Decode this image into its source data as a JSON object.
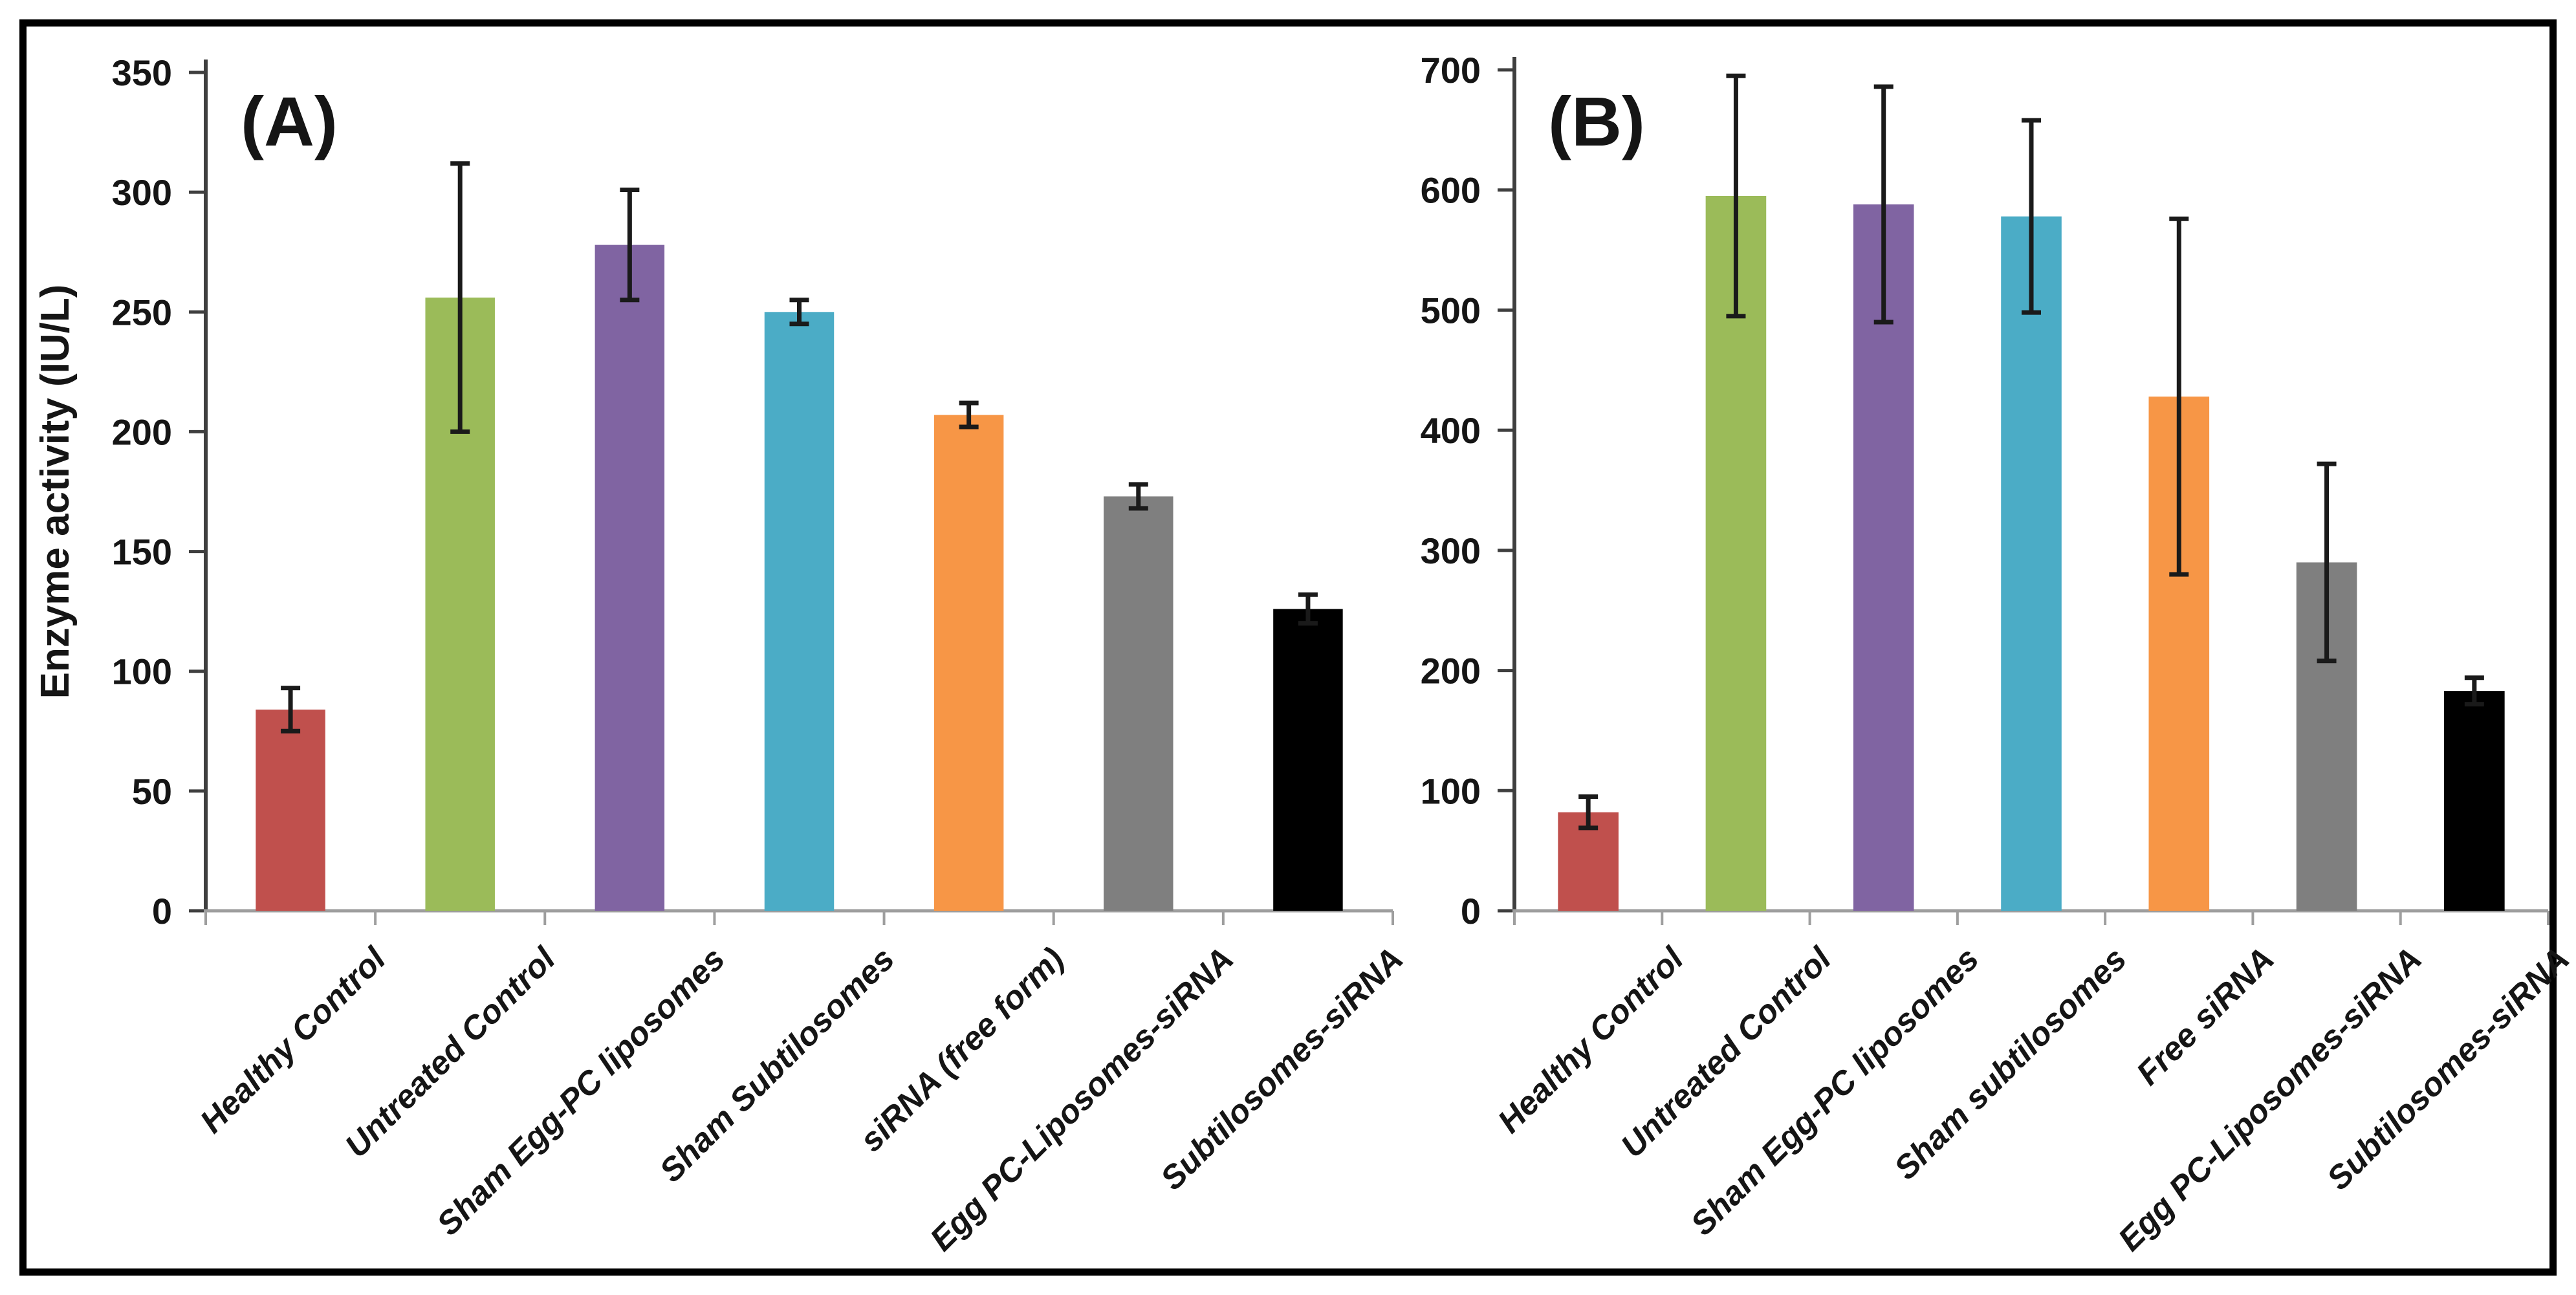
{
  "figure": {
    "frame_color": "#000000",
    "background": "#ffffff",
    "panels": [
      "(A)",
      "(B)"
    ]
  },
  "styles": {
    "axis_color": "#3f3f3f",
    "baseline_color": "#9e9e9e",
    "error_bar_color": "#1a1a1a",
    "text_color": "#151515"
  },
  "chart_data": [
    {
      "type": "bar",
      "panel_label": "(A)",
      "title": "(A)",
      "xlabel": "",
      "ylabel": "Enzyme activity (IU/L)",
      "ylim": [
        0,
        350
      ],
      "ytick_step": 50,
      "ytick_labels": [
        "0",
        "50",
        "100",
        "150",
        "200",
        "250",
        "300",
        "350"
      ],
      "grid": false,
      "legend_position": "none",
      "categories": [
        "Healthy Control",
        "Untreated Control",
        "Sham Egg-PC liposomes",
        "Sham Subtilosomes",
        "siRNA (free form)",
        "Egg PC-Liposomes-siRNA",
        "Subtilosomes-siRNA"
      ],
      "values": [
        84,
        256,
        278,
        250,
        207,
        173,
        126
      ],
      "errors": [
        9,
        56,
        23,
        5,
        5,
        5,
        6
      ],
      "bar_colors": [
        "#C0504D",
        "#9BBB59",
        "#8064A2",
        "#4BACC6",
        "#F79646",
        "#7F7F7F",
        "#000000"
      ]
    },
    {
      "type": "bar",
      "panel_label": "(B)",
      "title": "(B)",
      "xlabel": "",
      "ylabel": "",
      "ylim": [
        0,
        700
      ],
      "ytick_step": 100,
      "ytick_labels": [
        "0",
        "100",
        "200",
        "300",
        "400",
        "500",
        "600",
        "700"
      ],
      "grid": false,
      "legend_position": "none",
      "categories": [
        "Healthy Control",
        "Untreated Control",
        "Sham Egg-PC liposomes",
        "Sham subtilosomes",
        "Free siRNA",
        "Egg PC-Liposomes-siRNA",
        "Subtilosomes-siRNA"
      ],
      "values": [
        82,
        595,
        588,
        578,
        428,
        290,
        183
      ],
      "errors": [
        13,
        100,
        98,
        80,
        148,
        82,
        11
      ],
      "bar_colors": [
        "#C0504D",
        "#9BBB59",
        "#8064A2",
        "#4BACC6",
        "#F79646",
        "#7F7F7F",
        "#000000"
      ]
    }
  ]
}
